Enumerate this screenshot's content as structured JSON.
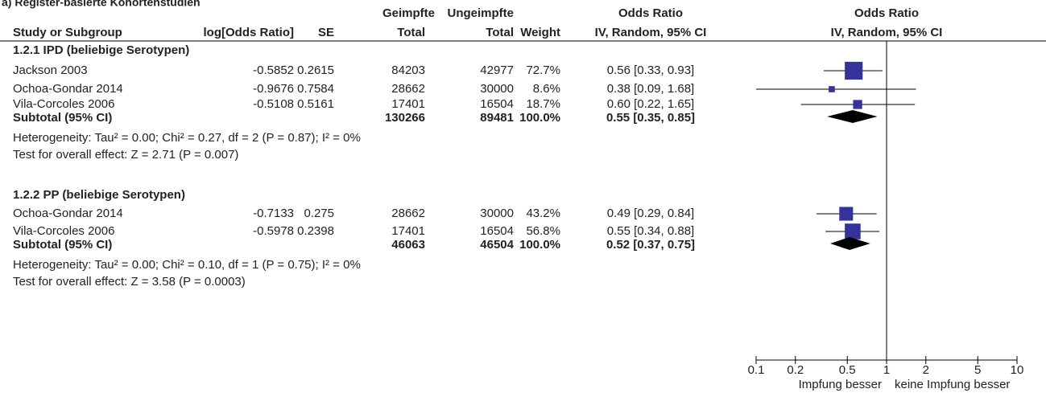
{
  "title": "a) Register-basierte Kohortenstudien",
  "table": {
    "header_top": [
      "Geimpfte",
      "Ungeimpfte",
      "Odds Ratio",
      "Odds Ratio"
    ],
    "header": [
      "Study or Subgroup",
      "log[Odds Ratio]",
      "SE",
      "Total",
      "Total",
      "Weight",
      "IV, Random, 95% CI",
      "IV, Random, 95% CI"
    ],
    "groups": [
      {
        "title": "1.2.1 IPD (beliebige Serotypen)",
        "rows": [
          [
            "Jackson 2003",
            -0.5852,
            0.2615,
            84203,
            42977,
            "72.7%",
            "0.56 [0.33, 0.93]"
          ],
          [
            "Ochoa-Gondar 2014",
            -0.9676,
            0.7584,
            28662,
            30000,
            "8.6%",
            "0.38 [0.09, 1.68]"
          ],
          [
            "Vila-Corcoles 2006",
            -0.5108,
            0.5161,
            17401,
            16504,
            "18.7%",
            "0.60 [0.22, 1.65]"
          ]
        ],
        "subtotal": {
          "label": "Subtotal (95% CI)",
          "total_vaccinated": 130266,
          "total_unvaccinated": 89481,
          "weight": "100.0%",
          "ci": "0.55 [0.35, 0.85]"
        },
        "heterogeneity": "Heterogeneity: Tau² = 0.00; Chi² = 0.27, df = 2 (P = 0.87); I² = 0%",
        "overall_effect": "Test for overall effect: Z = 2.71 (P = 0.007)"
      },
      {
        "title": "1.2.2 PP (beliebige Serotypen)",
        "rows": [
          [
            "Ochoa-Gondar 2014",
            -0.7133,
            0.275,
            28662,
            30000,
            "43.2%",
            "0.49 [0.29, 0.84]"
          ],
          [
            "Vila-Corcoles 2006",
            -0.5978,
            0.2398,
            17401,
            16504,
            "56.8%",
            "0.55 [0.34, 0.88]"
          ]
        ],
        "subtotal": {
          "label": "Subtotal (95% CI)",
          "total_vaccinated": 46063,
          "total_unvaccinated": 46504,
          "weight": "100.0%",
          "ci": "0.52 [0.37, 0.75]"
        },
        "heterogeneity": "Heterogeneity: Tau² = 0.00; Chi² = 0.10, df = 1 (P = 0.75); I² = 0%",
        "overall_effect": "Test for overall effect: Z = 3.58 (P = 0.0003)"
      }
    ]
  },
  "chart_data": {
    "type": "forest",
    "log_scale": true,
    "xlim": [
      0.1,
      10
    ],
    "xticks": [
      0.1,
      0.2,
      0.5,
      1,
      2,
      5,
      10
    ],
    "xlabel_left": "Impfung besser",
    "xlabel_right": "keine Impfung besser",
    "color": "#333399",
    "groups": [
      {
        "studies": [
          {
            "or": 0.56,
            "ci": [
              0.33,
              0.93
            ],
            "weight": 72.7
          },
          {
            "or": 0.38,
            "ci": [
              0.09,
              1.68
            ],
            "weight": 8.6
          },
          {
            "or": 0.6,
            "ci": [
              0.22,
              1.65
            ],
            "weight": 18.7
          }
        ],
        "subtotal": {
          "or": 0.55,
          "ci": [
            0.35,
            0.85
          ]
        }
      },
      {
        "studies": [
          {
            "or": 0.49,
            "ci": [
              0.29,
              0.84
            ],
            "weight": 43.2
          },
          {
            "or": 0.55,
            "ci": [
              0.34,
              0.88
            ],
            "weight": 56.8
          }
        ],
        "subtotal": {
          "or": 0.52,
          "ci": [
            0.37,
            0.75
          ]
        }
      }
    ]
  }
}
